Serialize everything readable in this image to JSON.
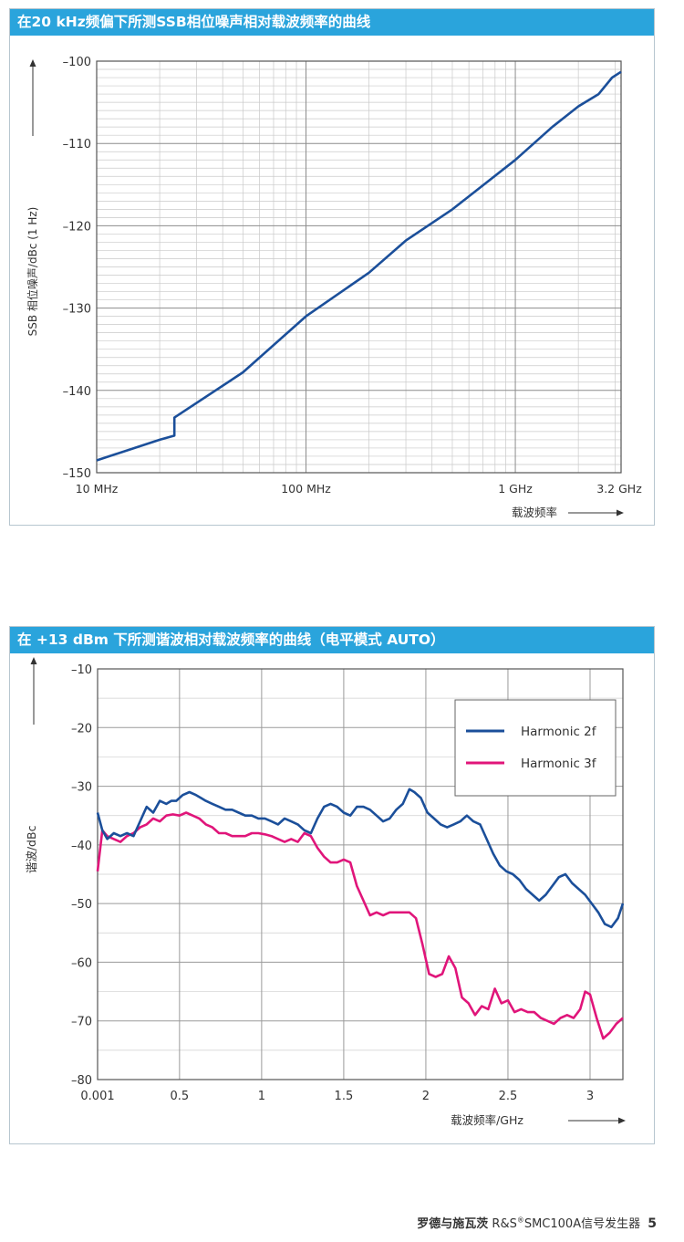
{
  "chart1": {
    "title": "在20 kHz频偏下所测SSB相位噪声相对载波频率的曲线",
    "ylabel": "SSB 相位噪声/dBc (1 Hz)",
    "xlabel": "载波频率",
    "xscale": "log",
    "xlim_mhz": [
      10,
      3200
    ],
    "ylim": [
      -150,
      -100
    ],
    "y_ticks": [
      -100,
      -110,
      -120,
      -130,
      -140,
      -150
    ],
    "y_tick_labels": [
      "–100",
      "–110",
      "–120",
      "–130",
      "–140",
      "–150"
    ],
    "x_ticks_mhz": [
      10,
      100,
      1000,
      3200
    ],
    "x_tick_labels": [
      "10 MHz",
      "100 MHz",
      "1 GHz",
      "3.2 GHz"
    ],
    "grid": true,
    "line_color": "#1b4f9a",
    "chart_data": {
      "type": "line",
      "title": "在20 kHz频偏下所测SSB相位噪声相对载波频率的曲线",
      "xlabel": "载波频率",
      "ylabel": "SSB 相位噪声/dBc (1 Hz)",
      "series": [
        {
          "x_mhz": [
            10,
            20,
            23.5,
            23.5,
            50,
            100,
            200,
            300,
            500,
            1000,
            1500,
            2000,
            2500,
            2900,
            3200
          ],
          "values": [
            -148.5,
            -146,
            -145.5,
            -143.3,
            -137.8,
            -131,
            -125.7,
            -121.8,
            -118,
            -112,
            -108,
            -105.5,
            -104,
            -102,
            -101.3
          ]
        }
      ]
    }
  },
  "chart2": {
    "title": "在 +13 dBm 下所测谐波相对载波频率的曲线（电平模式 AUTO）",
    "ylabel": "谐波/dBc",
    "xlabel": "载波频率/GHz",
    "xlim": [
      0.001,
      3.2
    ],
    "ylim": [
      -80,
      -10
    ],
    "y_ticks": [
      -10,
      -20,
      -30,
      -40,
      -50,
      -60,
      -70,
      -80
    ],
    "y_tick_labels": [
      "–10",
      "–20",
      "–30",
      "–40",
      "–50",
      "–60",
      "–70",
      "–80"
    ],
    "x_ticks": [
      0.001,
      0.5,
      1,
      1.5,
      2,
      2.5,
      3
    ],
    "x_tick_labels": [
      "0.001",
      "0.5",
      "1",
      "1.5",
      "2",
      "2.5",
      "3"
    ],
    "grid": true,
    "legend_position": "top-right",
    "colors": {
      "harmonic_2f": "#1b4f9a",
      "harmonic_3f": "#e0157a"
    },
    "chart_data": {
      "type": "line",
      "title": "在 +13 dBm 下所测谐波相对载波频率的曲线（电平模式 AUTO）",
      "xlabel": "载波频率/GHz",
      "ylabel": "谐波/dBc",
      "series": [
        {
          "name": "Harmonic 2f",
          "x": [
            0.001,
            0.03,
            0.06,
            0.1,
            0.14,
            0.18,
            0.22,
            0.26,
            0.3,
            0.34,
            0.38,
            0.42,
            0.45,
            0.48,
            0.52,
            0.56,
            0.6,
            0.63,
            0.66,
            0.7,
            0.74,
            0.78,
            0.82,
            0.86,
            0.9,
            0.94,
            0.98,
            1.02,
            1.06,
            1.1,
            1.14,
            1.18,
            1.22,
            1.26,
            1.3,
            1.34,
            1.38,
            1.42,
            1.46,
            1.5,
            1.54,
            1.58,
            1.62,
            1.66,
            1.7,
            1.74,
            1.78,
            1.82,
            1.86,
            1.9,
            1.93,
            1.97,
            2.01,
            2.05,
            2.09,
            2.13,
            2.17,
            2.21,
            2.25,
            2.29,
            2.33,
            2.37,
            2.41,
            2.45,
            2.49,
            2.53,
            2.57,
            2.61,
            2.65,
            2.69,
            2.73,
            2.77,
            2.81,
            2.85,
            2.89,
            2.93,
            2.97,
            3.01,
            3.05,
            3.09,
            3.13,
            3.17,
            3.2
          ],
          "values": [
            -34.5,
            -37.5,
            -39,
            -38,
            -38.5,
            -38,
            -38.5,
            -36,
            -33.5,
            -34.5,
            -32.5,
            -33,
            -32.5,
            -32.5,
            -31.5,
            -31,
            -31.5,
            -32,
            -32.5,
            -33,
            -33.5,
            -34,
            -34,
            -34.5,
            -35,
            -35,
            -35.5,
            -35.5,
            -36,
            -36.5,
            -35.5,
            -36,
            -36.5,
            -37.5,
            -38,
            -35.5,
            -33.5,
            -33,
            -33.5,
            -34.5,
            -35,
            -33.5,
            -33.5,
            -34,
            -35,
            -36,
            -35.5,
            -34,
            -33,
            -30.5,
            -31,
            -32,
            -34.5,
            -35.5,
            -36.5,
            -37,
            -36.5,
            -36,
            -35,
            -36,
            -36.5,
            -39,
            -41.5,
            -43.5,
            -44.5,
            -45,
            -46,
            -47.5,
            -48.5,
            -49.5,
            -48.5,
            -47,
            -45.5,
            -45,
            -46.5,
            -47.5,
            -48.5,
            -50,
            -51.5,
            -53.5,
            -54,
            -52.5,
            -50
          ]
        },
        {
          "name": "Harmonic 3f",
          "x": [
            0.001,
            0.03,
            0.06,
            0.1,
            0.14,
            0.18,
            0.22,
            0.26,
            0.3,
            0.34,
            0.38,
            0.42,
            0.46,
            0.5,
            0.54,
            0.58,
            0.62,
            0.66,
            0.7,
            0.74,
            0.78,
            0.82,
            0.86,
            0.9,
            0.94,
            0.98,
            1.02,
            1.06,
            1.1,
            1.14,
            1.18,
            1.22,
            1.26,
            1.3,
            1.34,
            1.38,
            1.42,
            1.46,
            1.5,
            1.54,
            1.58,
            1.62,
            1.66,
            1.7,
            1.74,
            1.78,
            1.82,
            1.86,
            1.9,
            1.94,
            1.98,
            2.02,
            2.06,
            2.1,
            2.14,
            2.18,
            2.22,
            2.26,
            2.3,
            2.34,
            2.38,
            2.42,
            2.46,
            2.5,
            2.54,
            2.58,
            2.62,
            2.66,
            2.7,
            2.74,
            2.78,
            2.82,
            2.86,
            2.9,
            2.94,
            2.97,
            3.0,
            3.04,
            3.08,
            3.12,
            3.16,
            3.2
          ],
          "values": [
            -44.5,
            -37.5,
            -38.5,
            -39,
            -39.5,
            -38.5,
            -38,
            -37,
            -36.5,
            -35.5,
            -36,
            -35,
            -34.8,
            -35,
            -34.5,
            -35,
            -35.5,
            -36.5,
            -37,
            -38,
            -38,
            -38.5,
            -38.5,
            -38.5,
            -38,
            -38,
            -38.2,
            -38.5,
            -39,
            -39.5,
            -39,
            -39.5,
            -38,
            -38.5,
            -40.5,
            -42,
            -43,
            -43,
            -42.5,
            -43,
            -47,
            -49.5,
            -52,
            -51.5,
            -52,
            -51.5,
            -51.5,
            -51.5,
            -51.5,
            -52.5,
            -57,
            -62,
            -62.5,
            -62,
            -59,
            -61,
            -66,
            -67,
            -69,
            -67.5,
            -68,
            -64.5,
            -67,
            -66.5,
            -68.5,
            -68,
            -68.5,
            -68.5,
            -69.5,
            -70,
            -70.5,
            -69.5,
            -69,
            -69.5,
            -68,
            -65,
            -65.5,
            -69.5,
            -73,
            -72,
            -70.5,
            -69.5
          ]
        }
      ]
    }
  },
  "footer": {
    "brand": "罗德与施瓦茨",
    "product_pre": "R&S",
    "registered": "®",
    "product_post": "SMC100A信号发生器",
    "page_number": "5"
  }
}
